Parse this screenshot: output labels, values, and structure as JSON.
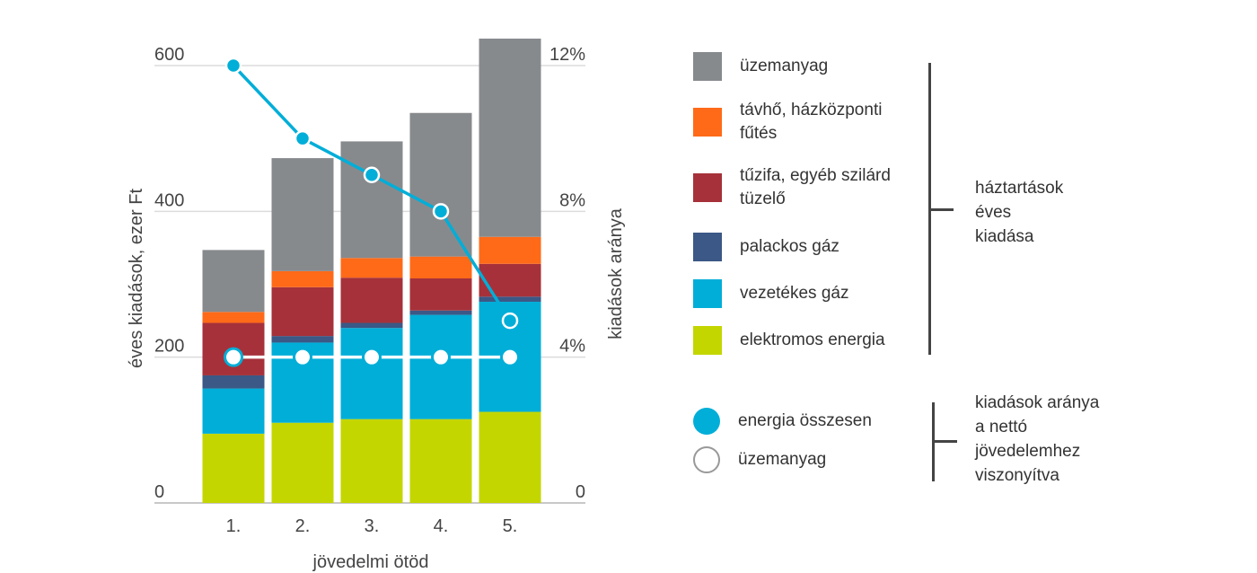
{
  "chart_data": {
    "type": "bar",
    "stacked": true,
    "categories": [
      "1.",
      "2.",
      "3.",
      "4.",
      "5."
    ],
    "xlabel": "jövedelmi ötöd",
    "ylabel": "éves kiadások, ezer Ft",
    "ylim": [
      0,
      600
    ],
    "yticks": [
      "0",
      "200",
      "400",
      "600"
    ],
    "y2label": "kiadások aránya",
    "y2lim": [
      0,
      12
    ],
    "y2ticks": [
      "0",
      "4%",
      "8%",
      "12%"
    ],
    "grid": true,
    "series": [
      {
        "name": "elektromos energia",
        "color": "#c4d600",
        "values": [
          95,
          110,
          115,
          115,
          125
        ]
      },
      {
        "name": "vezetékes gáz",
        "color": "#00aed8",
        "values": [
          62,
          110,
          125,
          143,
          151
        ]
      },
      {
        "name": "palackos gáz",
        "color": "#3b5886",
        "values": [
          18,
          9,
          7,
          6,
          7
        ]
      },
      {
        "name": "tűzifa, egyéb szilárd tüzelő",
        "color": "#a6313a",
        "values": [
          72,
          67,
          62,
          44,
          45
        ]
      },
      {
        "name": "távhő, házközponti fűtés",
        "color": "#ff6a18",
        "values": [
          15,
          22,
          27,
          30,
          37
        ]
      },
      {
        "name": "üzemanyag",
        "color": "#878a8d",
        "values": [
          85,
          155,
          160,
          197,
          272
        ]
      }
    ],
    "lines": [
      {
        "name": "energia összesen",
        "color": "#00aed8",
        "marker": "filled",
        "values": [
          12.0,
          10.0,
          9.0,
          8.0,
          5.0
        ]
      },
      {
        "name": "üzemanyag",
        "color": "#ffffff",
        "marker": "hollow",
        "values": [
          4.0,
          4.0,
          4.0,
          4.0,
          4.0
        ]
      }
    ],
    "legend_groups": [
      {
        "label_lines": [
          "háztartások",
          "éves",
          "kiadása"
        ]
      },
      {
        "label_lines": [
          "kiadások aránya",
          "a nettó",
          "jövedelemhez",
          "viszonyítva"
        ]
      }
    ]
  }
}
